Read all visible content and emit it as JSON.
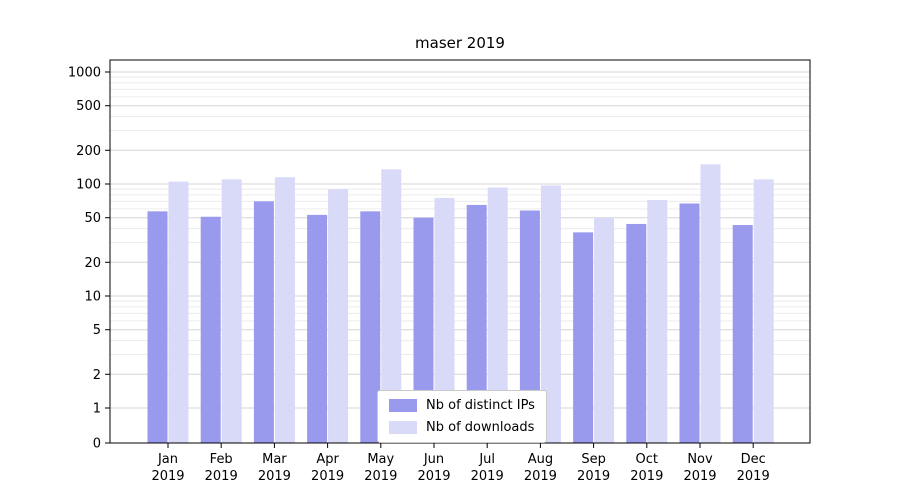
{
  "chart_data": {
    "type": "bar",
    "title": "maser 2019",
    "months": [
      "Jan",
      "Feb",
      "Mar",
      "Apr",
      "May",
      "Jun",
      "Jul",
      "Aug",
      "Sep",
      "Oct",
      "Nov",
      "Dec"
    ],
    "year": "2019",
    "yscale": "symlog",
    "ylim": [
      0,
      1000
    ],
    "yticks": [
      0,
      1,
      2,
      5,
      10,
      20,
      50,
      100,
      200,
      500,
      1000
    ],
    "grid": true,
    "legend_position": "lower center",
    "series": [
      {
        "name": "Nb of distinct IPs",
        "color": "#9999ee",
        "values": [
          57,
          51,
          70,
          53,
          57,
          50,
          65,
          58,
          37,
          44,
          67,
          43
        ]
      },
      {
        "name": "Nb of downloads",
        "color": "#d9d9f8",
        "values": [
          105,
          110,
          115,
          90,
          135,
          75,
          93,
          97,
          50,
          72,
          150,
          110
        ]
      }
    ]
  }
}
